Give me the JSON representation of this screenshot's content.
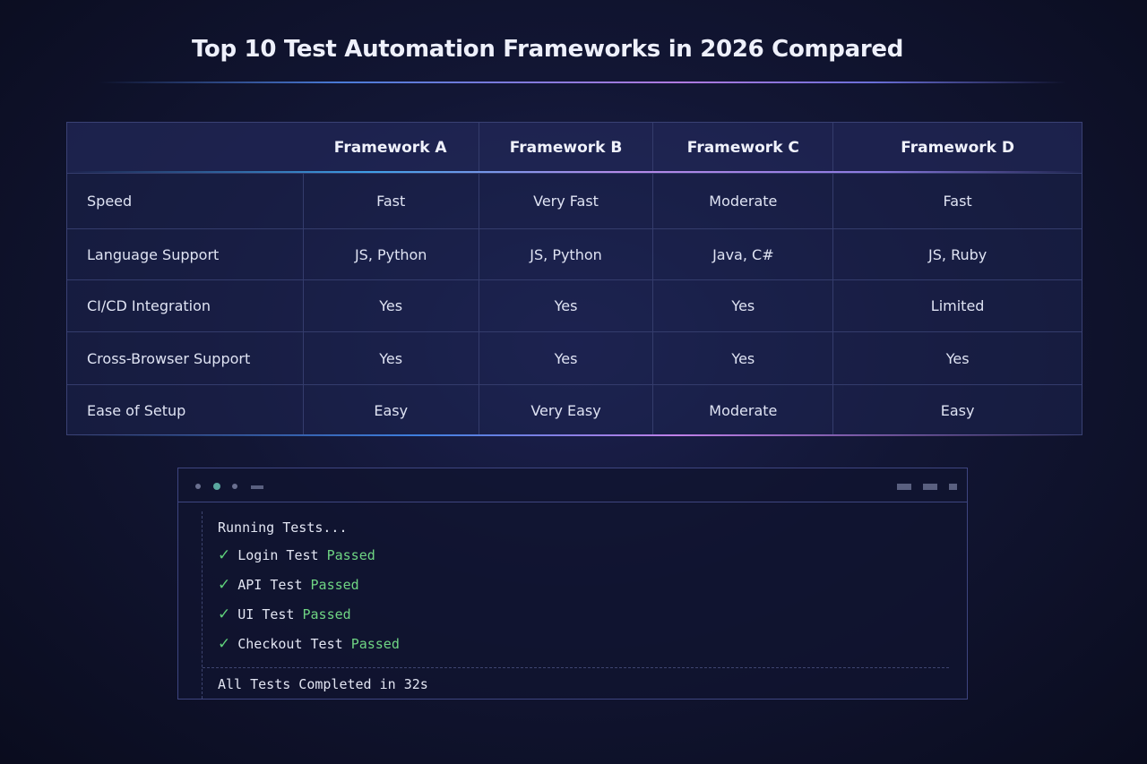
{
  "title": "Top 10 Test Automation Frameworks in 2026 Compared",
  "table": {
    "headers": [
      "",
      "Framework A",
      "Framework B",
      "Framework C",
      "Framework D"
    ],
    "rows": [
      [
        "Speed",
        "Fast",
        "Very Fast",
        "Moderate",
        "Fast"
      ],
      [
        "Language Support",
        "JS, Python",
        "JS, Python",
        "Java, C#",
        "JS, Ruby"
      ],
      [
        "CI/CD Integration",
        "Yes",
        "Yes",
        "Yes",
        "Limited"
      ],
      [
        "Cross-Browser Support",
        "Yes",
        "Yes",
        "Yes",
        "Yes"
      ],
      [
        "Ease of Setup",
        "Easy",
        "Very Easy",
        "Moderate",
        "Easy"
      ]
    ]
  },
  "terminal": {
    "heading": "Running Tests...",
    "check_icon": "✓",
    "tests": [
      {
        "name": "Login Test",
        "status": "Passed"
      },
      {
        "name": "API Test",
        "status": "Passed"
      },
      {
        "name": "UI Test",
        "status": "Passed"
      },
      {
        "name": "Checkout Test",
        "status": "Passed"
      }
    ],
    "summary": "All Tests Completed in 32s"
  },
  "colors": {
    "pass": "#6fd583",
    "accent_blue": "#3fa0e8",
    "accent_purple": "#b78ae8"
  }
}
